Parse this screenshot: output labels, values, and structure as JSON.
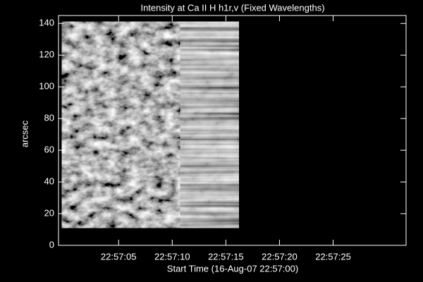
{
  "chart_data": {
    "type": "image",
    "title": "Intensity at Ca II H h1r,v (Fixed Wavelengths)",
    "x_label": "Start Time (16-Aug-07 22:57:00)",
    "y_label": "arcsec",
    "xlim": [
      -0.6,
      31.8
    ],
    "ylim": [
      0,
      145
    ],
    "xticks": [
      {
        "value": 5,
        "label": "22:57:05"
      },
      {
        "value": 10,
        "label": "22:57:10"
      },
      {
        "value": 15,
        "label": "22:57:15"
      },
      {
        "value": 20,
        "label": "22:57:20"
      },
      {
        "value": 25,
        "label": "22:57:25"
      }
    ],
    "yticks": [
      0,
      20,
      40,
      60,
      80,
      100,
      120,
      140
    ],
    "image": {
      "x": [
        -0.3,
        16.2
      ],
      "y": [
        11,
        141
      ]
    },
    "colormap": "gray"
  }
}
